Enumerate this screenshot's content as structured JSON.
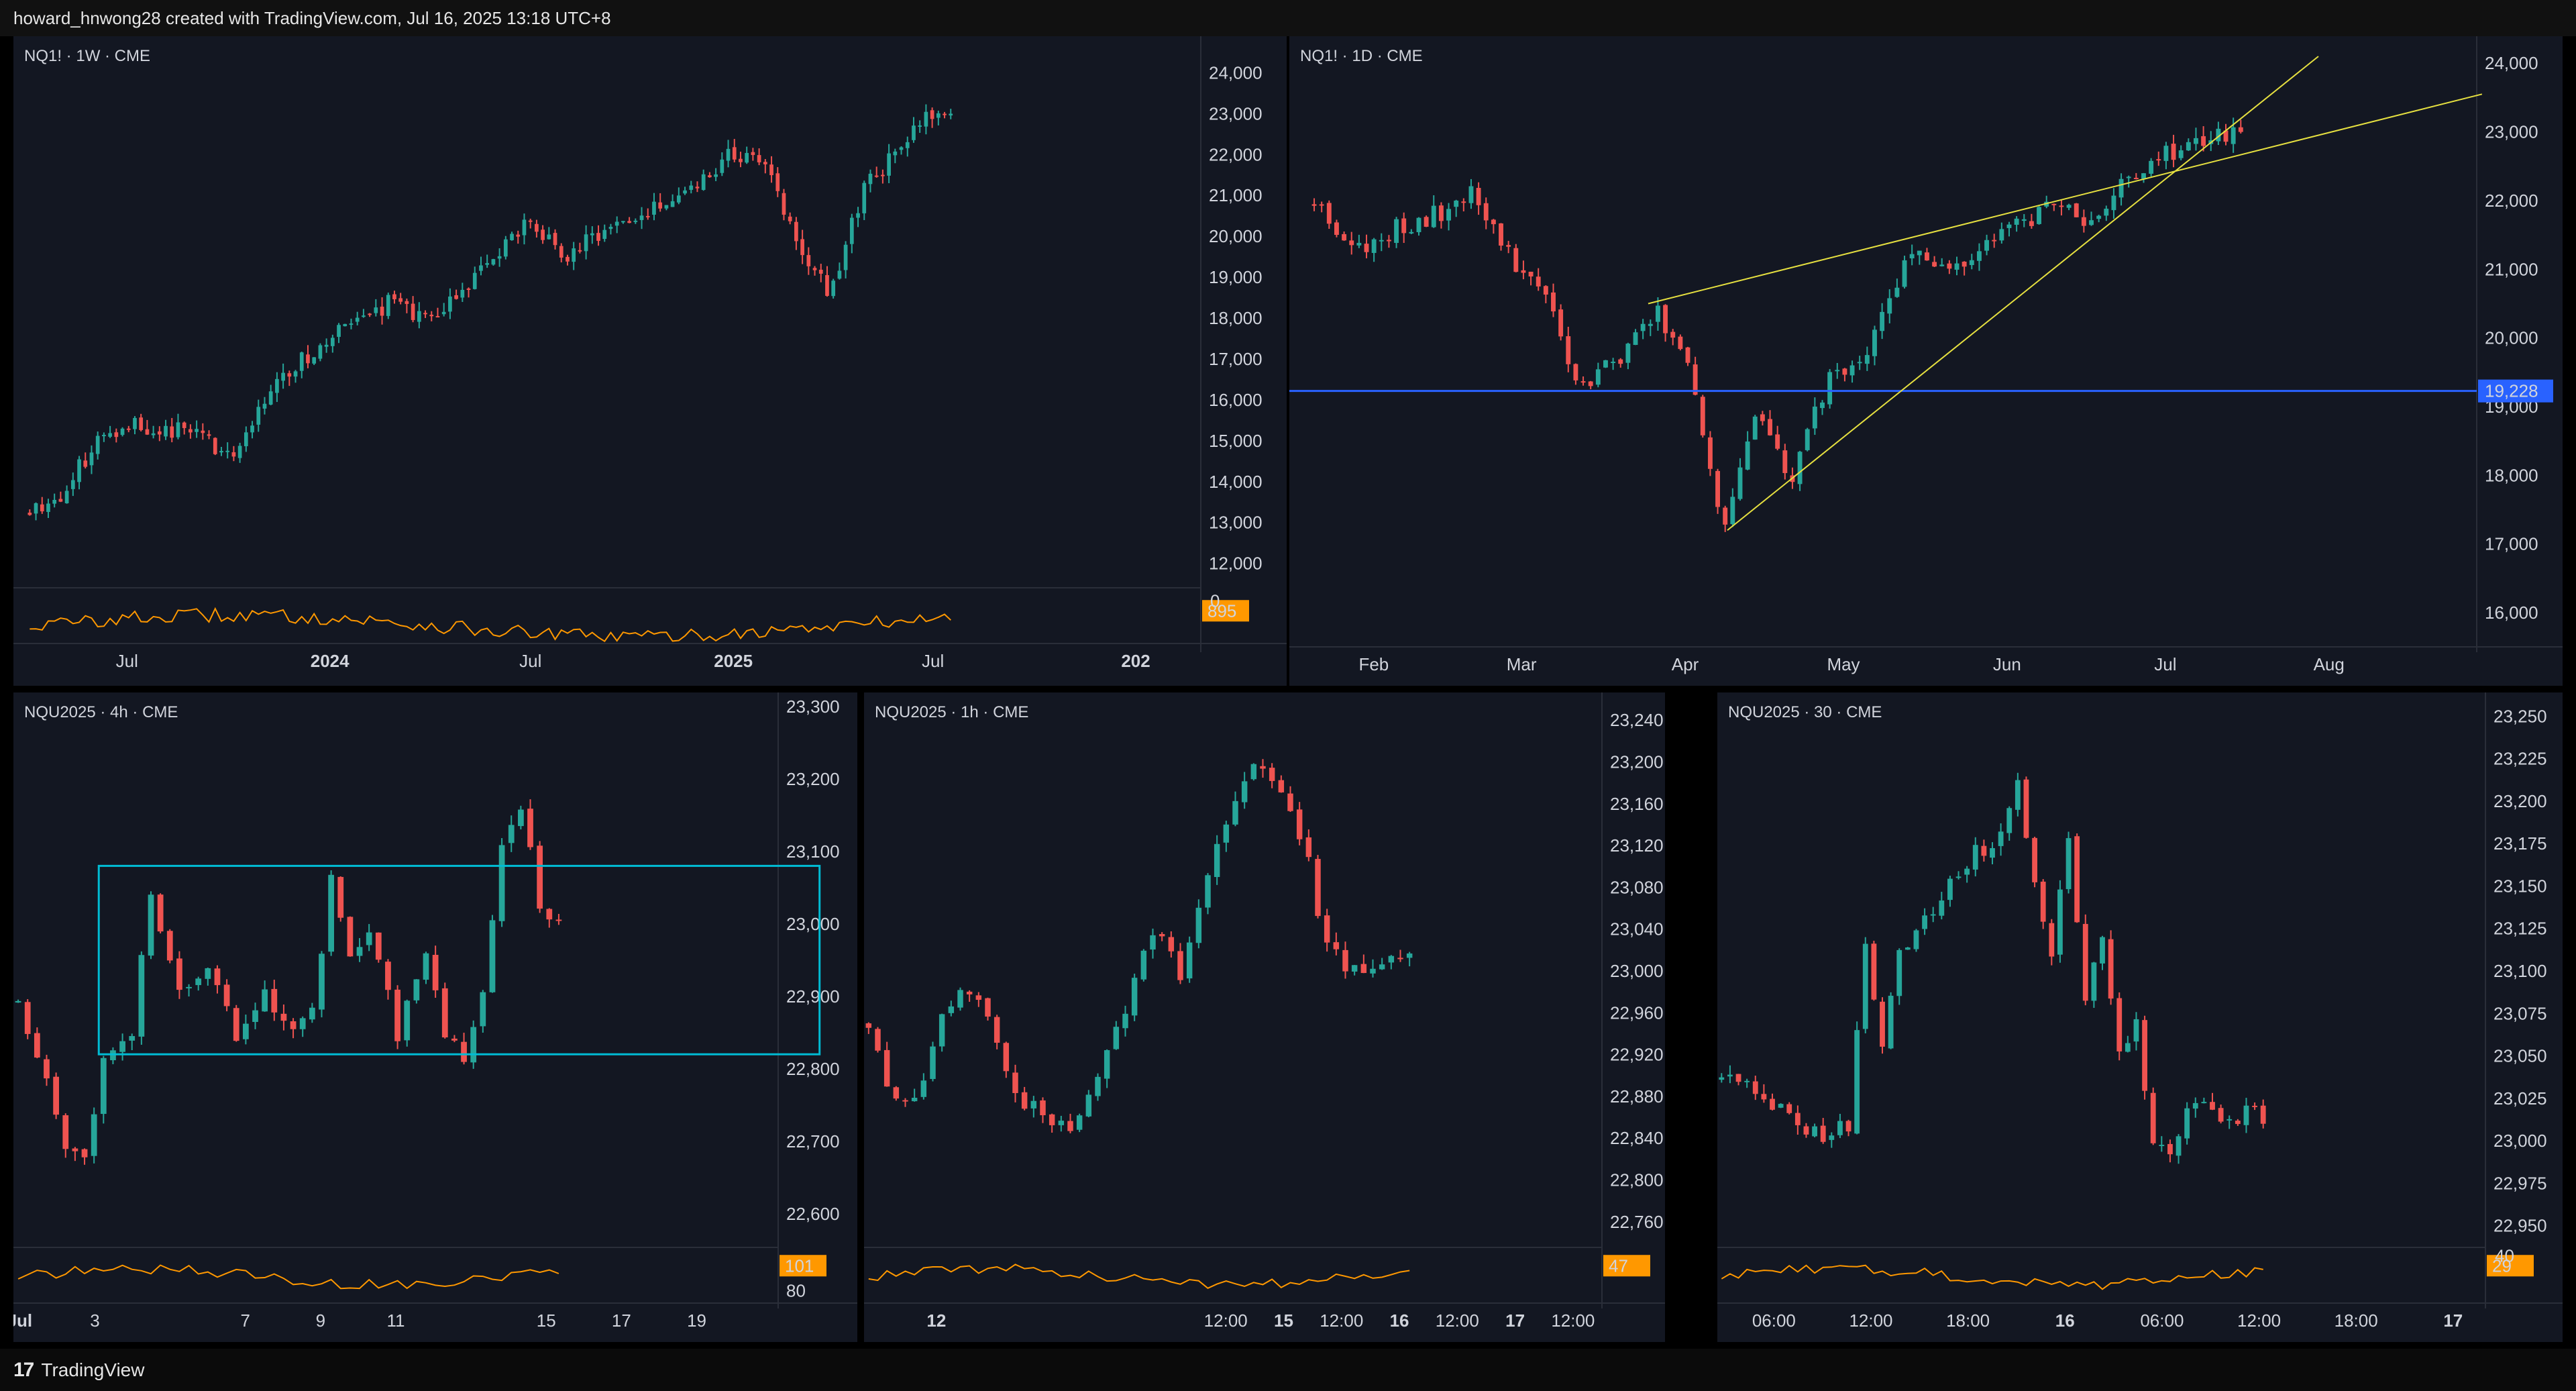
{
  "header": {
    "attribution": "howard_hnwong28 created with TradingView.com, Jul 16, 2025 13:18 UTC+8"
  },
  "footer": {
    "logo_glyph": "17",
    "brand": "TradingView"
  },
  "colors": {
    "background": "#131722",
    "bull": "#26a69a",
    "bear": "#ef5350",
    "volume_line": "#ff9800",
    "trendline": "#e6e040",
    "horizontal_line": "#2962ff",
    "range_box": "#00bcd4"
  },
  "chart_data": [
    {
      "id": "weekly",
      "type": "candlestick",
      "symbol_label": "NQ1! · 1W · CME",
      "y_ticks": [
        "24,000",
        "23,000",
        "22,000",
        "21,000",
        "20,000",
        "19,000",
        "18,000",
        "17,000",
        "16,000",
        "15,000",
        "14,000",
        "13,000",
        "12,000"
      ],
      "ylim": [
        11600,
        24400
      ],
      "x_ticks": [
        {
          "label": "Jul",
          "bold": false,
          "x": "2023-07"
        },
        {
          "label": "2024",
          "bold": true,
          "x": "2024-01"
        },
        {
          "label": "Jul",
          "bold": false,
          "x": "2024-07"
        },
        {
          "label": "2025",
          "bold": true,
          "x": "2025-01"
        },
        {
          "label": "Jul",
          "bold": false,
          "x": "2025-07"
        },
        {
          "label": "202",
          "bold": true,
          "x": "2026-01"
        }
      ],
      "close_path": [
        [
          "2023-04",
          13300
        ],
        [
          "2023-05",
          13700
        ],
        [
          "2023-06",
          15000
        ],
        [
          "2023-07",
          15500
        ],
        [
          "2023-08",
          15200
        ],
        [
          "2023-09",
          15300
        ],
        [
          "2023-10",
          14500
        ],
        [
          "2023-11",
          16000
        ],
        [
          "2023-12",
          16900
        ],
        [
          "2024-01",
          17500
        ],
        [
          "2024-02",
          18000
        ],
        [
          "2024-03",
          18500
        ],
        [
          "2024-04",
          17800
        ],
        [
          "2024-05",
          18700
        ],
        [
          "2024-06",
          19500
        ],
        [
          "2024-07",
          20500
        ],
        [
          "2024-08",
          19400
        ],
        [
          "2024-09",
          20100
        ],
        [
          "2024-10",
          20300
        ],
        [
          "2024-11",
          20800
        ],
        [
          "2024-12",
          21400
        ],
        [
          "2025-01",
          22000
        ],
        [
          "2025-02",
          21800
        ],
        [
          "2025-03",
          20000
        ],
        [
          "2025-04",
          18500
        ],
        [
          "2025-05",
          21200
        ],
        [
          "2025-06",
          22000
        ],
        [
          "2025-07",
          23000
        ]
      ],
      "volume_indicator": {
        "value_label": "895",
        "partial_tick": "0"
      }
    },
    {
      "id": "daily",
      "type": "candlestick",
      "symbol_label": "NQ1! · 1D · CME",
      "y_ticks": [
        "24,000",
        "23,000",
        "22,000",
        "21,000",
        "20,000",
        "19,000",
        "18,000",
        "17,000",
        "16,000"
      ],
      "ylim": [
        15600,
        24100
      ],
      "x_ticks": [
        {
          "label": "Feb",
          "bold": false,
          "x": "2025-02-01"
        },
        {
          "label": "Mar",
          "bold": false,
          "x": "2025-03-01"
        },
        {
          "label": "Apr",
          "bold": false,
          "x": "2025-04-01"
        },
        {
          "label": "May",
          "bold": false,
          "x": "2025-05-01"
        },
        {
          "label": "Jun",
          "bold": false,
          "x": "2025-06-01"
        },
        {
          "label": "Jul",
          "bold": false,
          "x": "2025-07-01"
        },
        {
          "label": "Aug",
          "bold": false,
          "x": "2025-08-01"
        }
      ],
      "close_path": [
        [
          "2025-01-20",
          22000
        ],
        [
          "2025-01-28",
          21300
        ],
        [
          "2025-02-05",
          21600
        ],
        [
          "2025-02-12",
          21800
        ],
        [
          "2025-02-20",
          22100
        ],
        [
          "2025-02-28",
          21000
        ],
        [
          "2025-03-05",
          20700
        ],
        [
          "2025-03-11",
          19300
        ],
        [
          "2025-03-20",
          19700
        ],
        [
          "2025-03-26",
          20400
        ],
        [
          "2025-04-02",
          19600
        ],
        [
          "2025-04-08",
          17200
        ],
        [
          "2025-04-14",
          18900
        ],
        [
          "2025-04-21",
          17900
        ],
        [
          "2025-04-28",
          19400
        ],
        [
          "2025-05-06",
          19900
        ],
        [
          "2025-05-14",
          21300
        ],
        [
          "2025-05-22",
          21000
        ],
        [
          "2025-05-30",
          21500
        ],
        [
          "2025-06-10",
          21900
        ],
        [
          "2025-06-18",
          21700
        ],
        [
          "2025-06-24",
          22300
        ],
        [
          "2025-07-01",
          22700
        ],
        [
          "2025-07-08",
          22800
        ],
        [
          "2025-07-15",
          23000
        ]
      ],
      "horizontal_line": {
        "label": "19,228",
        "value": 19228
      },
      "trendlines": [
        {
          "from": [
            "2025-03-25",
            20500
          ],
          "to": [
            "2025-08-30",
            23550
          ]
        },
        {
          "from": [
            "2025-04-09",
            17200
          ],
          "to": [
            "2025-07-30",
            24100
          ]
        }
      ]
    },
    {
      "id": "h4",
      "type": "candlestick",
      "symbol_label": "NQU2025 · 4h · CME",
      "y_ticks": [
        "23,300",
        "23,200",
        "23,100",
        "23,000",
        "22,900",
        "22,800",
        "22,700",
        "22,600"
      ],
      "ylim": [
        22560,
        23310
      ],
      "x_ticks": [
        {
          "label": "Jul",
          "bold": true,
          "x": "2025-07-01"
        },
        {
          "label": "3",
          "bold": false,
          "x": "2025-07-03"
        },
        {
          "label": "7",
          "bold": false,
          "x": "2025-07-07"
        },
        {
          "label": "9",
          "bold": false,
          "x": "2025-07-09"
        },
        {
          "label": "11",
          "bold": false,
          "x": "2025-07-11"
        },
        {
          "label": "15",
          "bold": false,
          "x": "2025-07-15"
        },
        {
          "label": "17",
          "bold": false,
          "x": "2025-07-17"
        },
        {
          "label": "19",
          "bold": false,
          "x": "2025-07-19"
        }
      ],
      "close_path": [
        [
          0,
          22900
        ],
        [
          3,
          22780
        ],
        [
          5,
          22700
        ],
        [
          7,
          22680
        ],
        [
          9,
          22820
        ],
        [
          12,
          22850
        ],
        [
          14,
          23050
        ],
        [
          17,
          22900
        ],
        [
          20,
          22950
        ],
        [
          23,
          22850
        ],
        [
          26,
          22900
        ],
        [
          29,
          22850
        ],
        [
          31,
          22880
        ],
        [
          33,
          23060
        ],
        [
          35,
          22950
        ],
        [
          37,
          23000
        ],
        [
          40,
          22850
        ],
        [
          43,
          22950
        ],
        [
          45,
          22850
        ],
        [
          47,
          22820
        ],
        [
          49,
          22900
        ],
        [
          51,
          23100
        ],
        [
          53,
          23170
        ],
        [
          55,
          23020
        ],
        [
          57,
          23010
        ]
      ],
      "range_box": {
        "from_bar": 9,
        "to_bar": 85,
        "top": 23080,
        "bottom": 22820
      },
      "volume_indicator": {
        "value_label": "101",
        "lower_tick": "80"
      }
    },
    {
      "id": "h1",
      "type": "candlestick",
      "symbol_label": "NQU2025 · 1h · CME",
      "y_ticks": [
        "23,240",
        "23,200",
        "23,160",
        "23,120",
        "23,080",
        "23,040",
        "23,000",
        "22,960",
        "22,920",
        "22,880",
        "22,840",
        "22,800",
        "22,760"
      ],
      "ylim": [
        22740,
        23260
      ],
      "x_ticks": [
        {
          "label": "12",
          "bold": true,
          "x": "2025-07-12"
        },
        {
          "label": "12:00",
          "bold": false,
          "x": "2025-07-14 12:00"
        },
        {
          "label": "15",
          "bold": true,
          "x": "2025-07-15"
        },
        {
          "label": "12:00",
          "bold": false,
          "x": "2025-07-15 12:00"
        },
        {
          "label": "16",
          "bold": true,
          "x": "2025-07-16"
        },
        {
          "label": "12:00",
          "bold": false,
          "x": "2025-07-16 12:00"
        },
        {
          "label": "17",
          "bold": true,
          "x": "2025-07-17"
        },
        {
          "label": "12:00",
          "bold": false,
          "x": "2025-07-17 12:00"
        }
      ],
      "close_path": [
        [
          0,
          22950
        ],
        [
          2,
          22890
        ],
        [
          4,
          22870
        ],
        [
          6,
          22900
        ],
        [
          8,
          22960
        ],
        [
          10,
          22990
        ],
        [
          12,
          22980
        ],
        [
          14,
          22930
        ],
        [
          16,
          22880
        ],
        [
          19,
          22860
        ],
        [
          22,
          22850
        ],
        [
          25,
          22900
        ],
        [
          28,
          22960
        ],
        [
          31,
          23040
        ],
        [
          34,
          23000
        ],
        [
          37,
          23090
        ],
        [
          40,
          23170
        ],
        [
          43,
          23200
        ],
        [
          46,
          23160
        ],
        [
          48,
          23100
        ],
        [
          50,
          23020
        ],
        [
          53,
          23000
        ],
        [
          56,
          23010
        ],
        [
          59,
          23010
        ]
      ],
      "volume_indicator": {
        "value_label": "47"
      }
    },
    {
      "id": "m30",
      "type": "candlestick",
      "symbol_label": "NQU2025 · 30 · CME",
      "y_ticks": [
        "23,250",
        "23,225",
        "23,200",
        "23,175",
        "23,150",
        "23,125",
        "23,100",
        "23,075",
        "23,050",
        "23,025",
        "23,000",
        "22,975",
        "22,950"
      ],
      "ylim": [
        22940,
        23260
      ],
      "x_ticks": [
        {
          "label": "06:00",
          "bold": false,
          "x": "2025-07-15 06:00"
        },
        {
          "label": "12:00",
          "bold": false,
          "x": "2025-07-15 12:00"
        },
        {
          "label": "18:00",
          "bold": false,
          "x": "2025-07-15 18:00"
        },
        {
          "label": "16",
          "bold": true,
          "x": "2025-07-16"
        },
        {
          "label": "06:00",
          "bold": false,
          "x": "2025-07-16 06:00"
        },
        {
          "label": "12:00",
          "bold": false,
          "x": "2025-07-16 12:00"
        },
        {
          "label": "18:00",
          "bold": false,
          "x": "2025-07-16 18:00"
        },
        {
          "label": "17",
          "bold": true,
          "x": "2025-07-17"
        }
      ],
      "close_path": [
        [
          0,
          23040
        ],
        [
          3,
          23030
        ],
        [
          6,
          23020
        ],
        [
          9,
          23010
        ],
        [
          12,
          23000
        ],
        [
          15,
          23010
        ],
        [
          17,
          23120
        ],
        [
          19,
          23050
        ],
        [
          21,
          23110
        ],
        [
          24,
          23130
        ],
        [
          27,
          23150
        ],
        [
          30,
          23170
        ],
        [
          33,
          23180
        ],
        [
          35,
          23210
        ],
        [
          37,
          23150
        ],
        [
          39,
          23110
        ],
        [
          41,
          23180
        ],
        [
          43,
          23080
        ],
        [
          45,
          23120
        ],
        [
          47,
          23050
        ],
        [
          49,
          23070
        ],
        [
          51,
          23000
        ],
        [
          53,
          22990
        ],
        [
          55,
          23020
        ],
        [
          57,
          23020
        ],
        [
          60,
          23010
        ],
        [
          62,
          23020
        ],
        [
          64,
          23010
        ]
      ],
      "volume_indicator": {
        "value_label": "29",
        "partial_tick": "40"
      }
    }
  ]
}
